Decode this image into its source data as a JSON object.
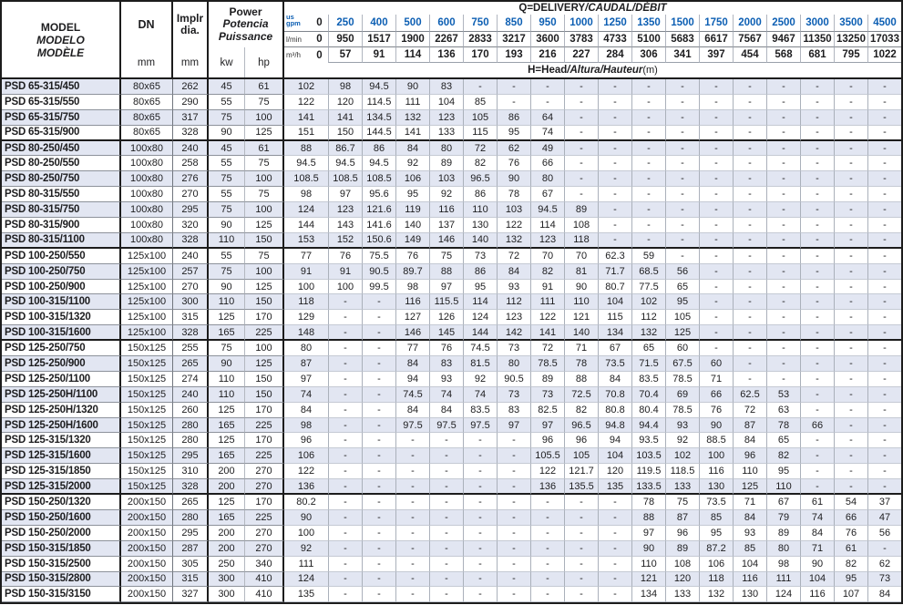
{
  "table": {
    "header": {
      "model_lines": [
        "MODEL",
        "MODELO",
        "MODÈLE"
      ],
      "dn_label": "DN",
      "dn_unit": "mm",
      "impeller_lines": [
        "Implr",
        "dia."
      ],
      "impeller_unit": "mm",
      "power_lines": [
        "Power",
        "Potencia",
        "Puissance"
      ],
      "kw_label": "kw",
      "hp_label": "hp",
      "q_title_main": "Q=DELIVERY",
      "q_title_alt": "/CAUDAL/DÉBIT",
      "h_title_main": "H=Head",
      "h_title_alt": "/Altura/Hauteur",
      "h_title_suffix": "(m)",
      "accent_blue": "#0d5fb3",
      "flow_rows": [
        {
          "unit_top": "us",
          "unit": "gpm",
          "zero": "0",
          "style": "gpm",
          "values": [
            "250",
            "400",
            "500",
            "600",
            "750",
            "850",
            "950",
            "1000",
            "1250",
            "1350",
            "1500",
            "1750",
            "2000",
            "2500",
            "3000",
            "3500",
            "4500"
          ]
        },
        {
          "unit": "l/min",
          "zero": "0",
          "style": "plain",
          "values": [
            "950",
            "1517",
            "1900",
            "2267",
            "2833",
            "3217",
            "3600",
            "3783",
            "4733",
            "5100",
            "5683",
            "6617",
            "7567",
            "9467",
            "11350",
            "13250",
            "17033"
          ]
        },
        {
          "unit": "m³/h",
          "zero": "0",
          "style": "plain",
          "values": [
            "57",
            "91",
            "114",
            "136",
            "170",
            "193",
            "216",
            "227",
            "284",
            "306",
            "341",
            "397",
            "454",
            "568",
            "681",
            "795",
            "1022"
          ]
        }
      ]
    },
    "rows": [
      {
        "model": "PSD 65-315/450",
        "dn": "80x65",
        "dia": "262",
        "kw": "45",
        "hp": "61",
        "head": [
          "102",
          "98",
          "94.5",
          "90",
          "83",
          "-",
          "-",
          "-",
          "-",
          "-",
          "-",
          "-",
          "-",
          "-",
          "-",
          "-",
          "-",
          "-"
        ]
      },
      {
        "model": "PSD 65-315/550",
        "dn": "80x65",
        "dia": "290",
        "kw": "55",
        "hp": "75",
        "head": [
          "122",
          "120",
          "114.5",
          "111",
          "104",
          "85",
          "-",
          "-",
          "-",
          "-",
          "-",
          "-",
          "-",
          "-",
          "-",
          "-",
          "-",
          "-"
        ]
      },
      {
        "model": "PSD 65-315/750",
        "dn": "80x65",
        "dia": "317",
        "kw": "75",
        "hp": "100",
        "head": [
          "141",
          "141",
          "134.5",
          "132",
          "123",
          "105",
          "86",
          "64",
          "-",
          "-",
          "-",
          "-",
          "-",
          "-",
          "-",
          "-",
          "-",
          "-"
        ]
      },
      {
        "model": "PSD 65-315/900",
        "dn": "80x65",
        "dia": "328",
        "kw": "90",
        "hp": "125",
        "head": [
          "151",
          "150",
          "144.5",
          "141",
          "133",
          "115",
          "95",
          "74",
          "-",
          "-",
          "-",
          "-",
          "-",
          "-",
          "-",
          "-",
          "-",
          "-"
        ]
      },
      {
        "model": "PSD 80-250/450",
        "dn": "100x80",
        "dia": "240",
        "kw": "45",
        "hp": "61",
        "head": [
          "88",
          "86.7",
          "86",
          "84",
          "80",
          "72",
          "62",
          "49",
          "-",
          "-",
          "-",
          "-",
          "-",
          "-",
          "-",
          "-",
          "-",
          "-"
        ]
      },
      {
        "model": "PSD 80-250/550",
        "dn": "100x80",
        "dia": "258",
        "kw": "55",
        "hp": "75",
        "head": [
          "94.5",
          "94.5",
          "94.5",
          "92",
          "89",
          "82",
          "76",
          "66",
          "-",
          "-",
          "-",
          "-",
          "-",
          "-",
          "-",
          "-",
          "-",
          "-"
        ]
      },
      {
        "model": "PSD 80-250/750",
        "dn": "100x80",
        "dia": "276",
        "kw": "75",
        "hp": "100",
        "head": [
          "108.5",
          "108.5",
          "108.5",
          "106",
          "103",
          "96.5",
          "90",
          "80",
          "-",
          "-",
          "-",
          "-",
          "-",
          "-",
          "-",
          "-",
          "-",
          "-"
        ]
      },
      {
        "model": "PSD 80-315/550",
        "dn": "100x80",
        "dia": "270",
        "kw": "55",
        "hp": "75",
        "head": [
          "98",
          "97",
          "95.6",
          "95",
          "92",
          "86",
          "78",
          "67",
          "-",
          "-",
          "-",
          "-",
          "-",
          "-",
          "-",
          "-",
          "-",
          "-"
        ]
      },
      {
        "model": "PSD 80-315/750",
        "dn": "100x80",
        "dia": "295",
        "kw": "75",
        "hp": "100",
        "head": [
          "124",
          "123",
          "121.6",
          "119",
          "116",
          "110",
          "103",
          "94.5",
          "89",
          "-",
          "-",
          "-",
          "-",
          "-",
          "-",
          "-",
          "-",
          "-"
        ]
      },
      {
        "model": "PSD 80-315/900",
        "dn": "100x80",
        "dia": "320",
        "kw": "90",
        "hp": "125",
        "head": [
          "144",
          "143",
          "141.6",
          "140",
          "137",
          "130",
          "122",
          "114",
          "108",
          "-",
          "-",
          "-",
          "-",
          "-",
          "-",
          "-",
          "-",
          "-"
        ]
      },
      {
        "model": "PSD 80-315/1100",
        "dn": "100x80",
        "dia": "328",
        "kw": "110",
        "hp": "150",
        "head": [
          "153",
          "152",
          "150.6",
          "149",
          "146",
          "140",
          "132",
          "123",
          "118",
          "-",
          "-",
          "-",
          "-",
          "-",
          "-",
          "-",
          "-",
          "-"
        ]
      },
      {
        "model": "PSD 100-250/550",
        "dn": "125x100",
        "dia": "240",
        "kw": "55",
        "hp": "75",
        "head": [
          "77",
          "76",
          "75.5",
          "76",
          "75",
          "73",
          "72",
          "70",
          "70",
          "62.3",
          "59",
          "-",
          "-",
          "-",
          "-",
          "-",
          "-",
          "-"
        ]
      },
      {
        "model": "PSD 100-250/750",
        "dn": "125x100",
        "dia": "257",
        "kw": "75",
        "hp": "100",
        "head": [
          "91",
          "91",
          "90.5",
          "89.7",
          "88",
          "86",
          "84",
          "82",
          "81",
          "71.7",
          "68.5",
          "56",
          "-",
          "-",
          "-",
          "-",
          "-",
          "-"
        ]
      },
      {
        "model": "PSD 100-250/900",
        "dn": "125x100",
        "dia": "270",
        "kw": "90",
        "hp": "125",
        "head": [
          "100",
          "100",
          "99.5",
          "98",
          "97",
          "95",
          "93",
          "91",
          "90",
          "80.7",
          "77.5",
          "65",
          "-",
          "-",
          "-",
          "-",
          "-",
          "-"
        ]
      },
      {
        "model": "PSD 100-315/1100",
        "dn": "125x100",
        "dia": "300",
        "kw": "110",
        "hp": "150",
        "head": [
          "118",
          "-",
          "-",
          "116",
          "115.5",
          "114",
          "112",
          "111",
          "110",
          "104",
          "102",
          "95",
          "-",
          "-",
          "-",
          "-",
          "-",
          "-"
        ]
      },
      {
        "model": "PSD 100-315/1320",
        "dn": "125x100",
        "dia": "315",
        "kw": "125",
        "hp": "170",
        "head": [
          "129",
          "-",
          "-",
          "127",
          "126",
          "124",
          "123",
          "122",
          "121",
          "115",
          "112",
          "105",
          "-",
          "-",
          "-",
          "-",
          "-",
          "-"
        ]
      },
      {
        "model": "PSD 100-315/1600",
        "dn": "125x100",
        "dia": "328",
        "kw": "165",
        "hp": "225",
        "head": [
          "148",
          "-",
          "-",
          "146",
          "145",
          "144",
          "142",
          "141",
          "140",
          "134",
          "132",
          "125",
          "-",
          "-",
          "-",
          "-",
          "-",
          "-"
        ]
      },
      {
        "model": "PSD 125-250/750",
        "dn": "150x125",
        "dia": "255",
        "kw": "75",
        "hp": "100",
        "head": [
          "80",
          "-",
          "-",
          "77",
          "76",
          "74.5",
          "73",
          "72",
          "71",
          "67",
          "65",
          "60",
          "-",
          "-",
          "-",
          "-",
          "-",
          "-"
        ]
      },
      {
        "model": "PSD 125-250/900",
        "dn": "150x125",
        "dia": "265",
        "kw": "90",
        "hp": "125",
        "head": [
          "87",
          "-",
          "-",
          "84",
          "83",
          "81.5",
          "80",
          "78.5",
          "78",
          "73.5",
          "71.5",
          "67.5",
          "60",
          "-",
          "-",
          "-",
          "-",
          "-"
        ]
      },
      {
        "model": "PSD 125-250/1100",
        "dn": "150x125",
        "dia": "274",
        "kw": "110",
        "hp": "150",
        "head": [
          "97",
          "-",
          "-",
          "94",
          "93",
          "92",
          "90.5",
          "89",
          "88",
          "84",
          "83.5",
          "78.5",
          "71",
          "-",
          "-",
          "-",
          "-",
          "-"
        ]
      },
      {
        "model": "PSD 125-250H/1100",
        "dn": "150x125",
        "dia": "240",
        "kw": "110",
        "hp": "150",
        "head": [
          "74",
          "-",
          "-",
          "74.5",
          "74",
          "74",
          "73",
          "73",
          "72.5",
          "70.8",
          "70.4",
          "69",
          "66",
          "62.5",
          "53",
          "-",
          "-",
          "-"
        ]
      },
      {
        "model": "PSD 125-250H/1320",
        "dn": "150x125",
        "dia": "260",
        "kw": "125",
        "hp": "170",
        "head": [
          "84",
          "-",
          "-",
          "84",
          "84",
          "83.5",
          "83",
          "82.5",
          "82",
          "80.8",
          "80.4",
          "78.5",
          "76",
          "72",
          "63",
          "-",
          "-",
          "-"
        ]
      },
      {
        "model": "PSD 125-250H/1600",
        "dn": "150x125",
        "dia": "280",
        "kw": "165",
        "hp": "225",
        "head": [
          "98",
          "-",
          "-",
          "97.5",
          "97.5",
          "97.5",
          "97",
          "97",
          "96.5",
          "94.8",
          "94.4",
          "93",
          "90",
          "87",
          "78",
          "66",
          "-",
          "-"
        ]
      },
      {
        "model": "PSD 125-315/1320",
        "dn": "150x125",
        "dia": "280",
        "kw": "125",
        "hp": "170",
        "head": [
          "96",
          "-",
          "-",
          "-",
          "-",
          "-",
          "-",
          "96",
          "96",
          "94",
          "93.5",
          "92",
          "88.5",
          "84",
          "65",
          "-",
          "-",
          "-"
        ]
      },
      {
        "model": "PSD 125-315/1600",
        "dn": "150x125",
        "dia": "295",
        "kw": "165",
        "hp": "225",
        "head": [
          "106",
          "-",
          "-",
          "-",
          "-",
          "-",
          "-",
          "105.5",
          "105",
          "104",
          "103.5",
          "102",
          "100",
          "96",
          "82",
          "-",
          "-",
          "-"
        ]
      },
      {
        "model": "PSD 125-315/1850",
        "dn": "150x125",
        "dia": "310",
        "kw": "200",
        "hp": "270",
        "head": [
          "122",
          "-",
          "-",
          "-",
          "-",
          "-",
          "-",
          "122",
          "121.7",
          "120",
          "119.5",
          "118.5",
          "116",
          "110",
          "95",
          "-",
          "-",
          "-"
        ]
      },
      {
        "model": "PSD 125-315/2000",
        "dn": "150x125",
        "dia": "328",
        "kw": "200",
        "hp": "270",
        "head": [
          "136",
          "-",
          "-",
          "-",
          "-",
          "-",
          "-",
          "136",
          "135.5",
          "135",
          "133.5",
          "133",
          "130",
          "125",
          "110",
          "-",
          "-",
          "-"
        ]
      },
      {
        "model": "PSD 150-250/1320",
        "dn": "200x150",
        "dia": "265",
        "kw": "125",
        "hp": "170",
        "head": [
          "80.2",
          "-",
          "-",
          "-",
          "-",
          "-",
          "-",
          "-",
          "-",
          "-",
          "78",
          "75",
          "73.5",
          "71",
          "67",
          "61",
          "54",
          "37"
        ]
      },
      {
        "model": "PSD 150-250/1600",
        "dn": "200x150",
        "dia": "280",
        "kw": "165",
        "hp": "225",
        "head": [
          "90",
          "-",
          "-",
          "-",
          "-",
          "-",
          "-",
          "-",
          "-",
          "-",
          "88",
          "87",
          "85",
          "84",
          "79",
          "74",
          "66",
          "47"
        ]
      },
      {
        "model": "PSD 150-250/2000",
        "dn": "200x150",
        "dia": "295",
        "kw": "200",
        "hp": "270",
        "head": [
          "100",
          "-",
          "-",
          "-",
          "-",
          "-",
          "-",
          "-",
          "-",
          "-",
          "97",
          "96",
          "95",
          "93",
          "89",
          "84",
          "76",
          "56"
        ]
      },
      {
        "model": "PSD 150-315/1850",
        "dn": "200x150",
        "dia": "287",
        "kw": "200",
        "hp": "270",
        "head": [
          "92",
          "-",
          "-",
          "-",
          "-",
          "-",
          "-",
          "-",
          "-",
          "-",
          "90",
          "89",
          "87.2",
          "85",
          "80",
          "71",
          "61",
          "-"
        ]
      },
      {
        "model": "PSD 150-315/2500",
        "dn": "200x150",
        "dia": "305",
        "kw": "250",
        "hp": "340",
        "head": [
          "111",
          "-",
          "-",
          "-",
          "-",
          "-",
          "-",
          "-",
          "-",
          "-",
          "110",
          "108",
          "106",
          "104",
          "98",
          "90",
          "82",
          "62"
        ]
      },
      {
        "model": "PSD 150-315/2800",
        "dn": "200x150",
        "dia": "315",
        "kw": "300",
        "hp": "410",
        "head": [
          "124",
          "-",
          "-",
          "-",
          "-",
          "-",
          "-",
          "-",
          "-",
          "-",
          "121",
          "120",
          "118",
          "116",
          "111",
          "104",
          "95",
          "73"
        ]
      },
      {
        "model": "PSD 150-315/3150",
        "dn": "200x150",
        "dia": "327",
        "kw": "300",
        "hp": "410",
        "head": [
          "135",
          "-",
          "-",
          "-",
          "-",
          "-",
          "-",
          "-",
          "-",
          "-",
          "134",
          "133",
          "132",
          "130",
          "124",
          "116",
          "107",
          "84"
        ]
      }
    ]
  }
}
